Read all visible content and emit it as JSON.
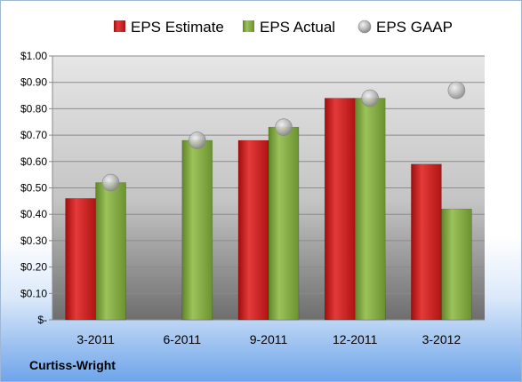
{
  "company": "Curtiss-Wright",
  "chart_data": {
    "type": "bar",
    "categories": [
      "3-2011",
      "6-2011",
      "9-2011",
      "12-2011",
      "3-2012"
    ],
    "series": [
      {
        "name": "EPS Estimate",
        "kind": "bar",
        "color": "#cc1a1a",
        "values": [
          0.46,
          null,
          0.68,
          0.84,
          0.59
        ]
      },
      {
        "name": "EPS Actual",
        "kind": "bar",
        "color": "#7ea43c",
        "values": [
          0.52,
          0.68,
          0.73,
          0.84,
          0.42
        ]
      },
      {
        "name": "EPS GAAP",
        "kind": "marker",
        "color": "#b4b4b4",
        "values": [
          0.52,
          0.68,
          0.73,
          0.84,
          0.87
        ]
      }
    ],
    "y_ticks": [
      "$-",
      "$0.10",
      "$0.20",
      "$0.30",
      "$0.40",
      "$0.50",
      "$0.60",
      "$0.70",
      "$0.80",
      "$0.90",
      "$1.00"
    ],
    "ylim": [
      0,
      1.0
    ],
    "legend_position": "top",
    "grid": true
  }
}
